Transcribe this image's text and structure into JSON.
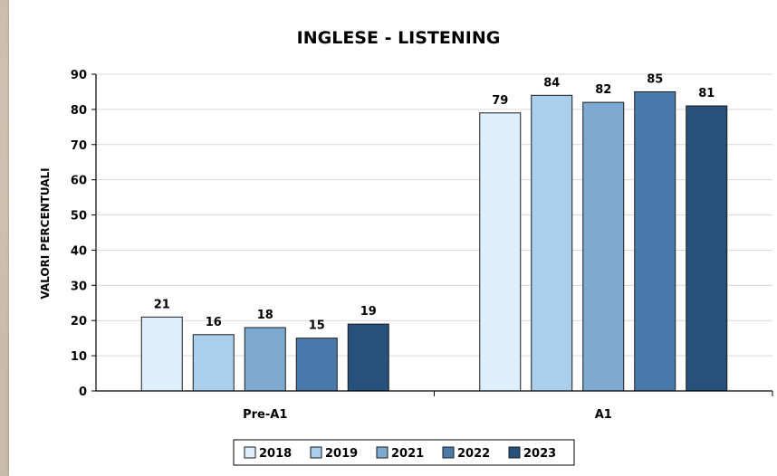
{
  "chart_data": {
    "type": "bar",
    "title": "INGLESE - LISTENING",
    "xlabel": "",
    "ylabel": "VALORI PERCENTUALI",
    "ylim": [
      0,
      90
    ],
    "yticks": [
      0,
      10,
      20,
      30,
      40,
      50,
      60,
      70,
      80,
      90
    ],
    "grid": true,
    "legend_position": "bottom",
    "categories": [
      "Pre-A1",
      "A1"
    ],
    "series": [
      {
        "name": "2018",
        "color": "#ddeefc",
        "values": [
          21,
          79
        ]
      },
      {
        "name": "2019",
        "color": "#a9cfec",
        "values": [
          16,
          84
        ]
      },
      {
        "name": "2021",
        "color": "#7ea9d1",
        "values": [
          18,
          82
        ]
      },
      {
        "name": "2022",
        "color": "#4a7aab",
        "values": [
          15,
          85
        ]
      },
      {
        "name": "2023",
        "color": "#27507d",
        "values": [
          19,
          81
        ]
      }
    ]
  }
}
